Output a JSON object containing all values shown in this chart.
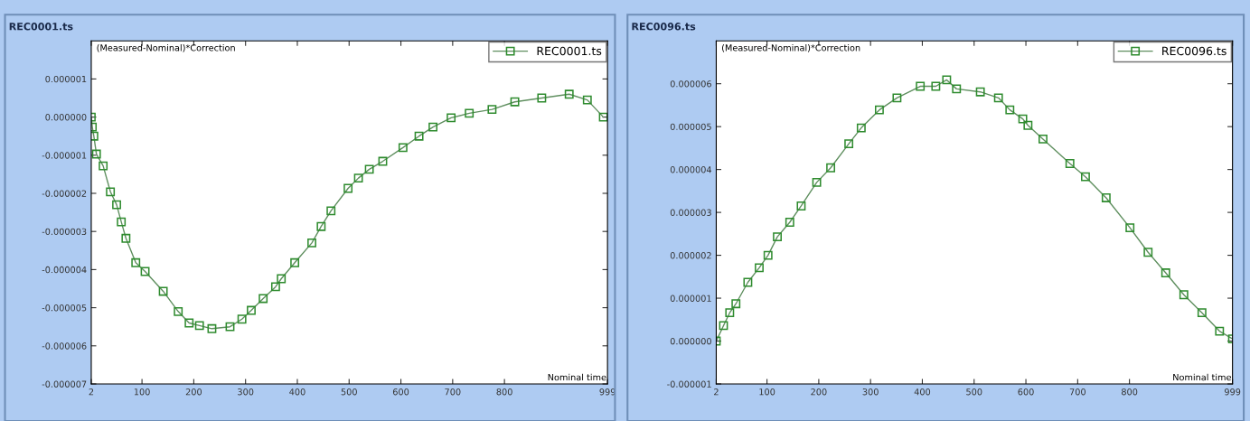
{
  "chart_data": [
    {
      "type": "line",
      "title": "REC0001.ts",
      "xlabel": "Nominal time",
      "ylabel": "(Measured-Nominal)*Correction",
      "x": [
        2,
        4,
        7,
        12,
        25,
        39,
        51,
        60,
        69,
        88,
        106,
        141,
        170,
        191,
        211,
        235,
        270,
        293,
        311,
        334,
        358,
        369,
        395,
        428,
        446,
        465,
        498,
        518,
        539,
        565,
        604,
        635,
        662,
        697,
        732,
        776,
        820,
        872,
        925,
        960,
        991
      ],
      "series": [
        {
          "name": "REC0001.ts",
          "color": "#2e8b2e",
          "values": [
            0.0,
            -2.6e-07,
            -5e-07,
            -9.7e-07,
            -1.28e-06,
            -1.96e-06,
            -2.3e-06,
            -2.75e-06,
            -3.18e-06,
            -3.82e-06,
            -4.05e-06,
            -4.57e-06,
            -5.1e-06,
            -5.4e-06,
            -5.47e-06,
            -5.55e-06,
            -5.5e-06,
            -5.3e-06,
            -5.07e-06,
            -4.76e-06,
            -4.45e-06,
            -4.24e-06,
            -3.82e-06,
            -3.3e-06,
            -2.87e-06,
            -2.46e-06,
            -1.87e-06,
            -1.6e-06,
            -1.37e-06,
            -1.16e-06,
            -8e-07,
            -5e-07,
            -2.6e-07,
            -2e-08,
            1e-07,
            2e-07,
            4e-07,
            5e-07,
            6e-07,
            4.5e-07,
            0.0
          ]
        }
      ],
      "xlim": [
        2,
        999
      ],
      "ylim": [
        -7e-06,
        2e-06
      ],
      "xticks": [
        2,
        100,
        200,
        300,
        400,
        500,
        600,
        700,
        800,
        999
      ],
      "yticks": [
        {
          "value": -7e-06,
          "label": "-0.000007"
        },
        {
          "value": -6e-06,
          "label": "-0.000006"
        },
        {
          "value": -5e-06,
          "label": "-0.000005"
        },
        {
          "value": -4e-06,
          "label": "-0.000004"
        },
        {
          "value": -3e-06,
          "label": "-0.000003"
        },
        {
          "value": -2e-06,
          "label": "-0.000002"
        },
        {
          "value": -1e-06,
          "label": "-0.000001"
        },
        {
          "value": 0,
          "label": "0.000000"
        },
        {
          "value": 1e-06,
          "label": "0.000001"
        }
      ],
      "marker": "square",
      "line_style": "solid",
      "grid": false,
      "legend": "top right"
    },
    {
      "type": "line",
      "title": "REC0096.ts",
      "xlabel": "Nominal time",
      "ylabel": "(Measured-Nominal)*Correction",
      "x": [
        2,
        16,
        28,
        40,
        63,
        85,
        102,
        120,
        144,
        166,
        196,
        223,
        258,
        282,
        317,
        351,
        396,
        426,
        447,
        466,
        512,
        547,
        569,
        594,
        604,
        633,
        685,
        715,
        755,
        801,
        836,
        870,
        905,
        940,
        974,
        999
      ],
      "series": [
        {
          "name": "REC0096.ts",
          "color": "#2e8b2e",
          "values": [
            0.0,
            3.6e-07,
            6.6e-07,
            8.7e-07,
            1.37e-06,
            1.71e-06,
            2e-06,
            2.43e-06,
            2.77e-06,
            3.15e-06,
            3.7e-06,
            4.04e-06,
            4.6e-06,
            4.97e-06,
            5.39e-06,
            5.67e-06,
            5.94e-06,
            5.94e-06,
            6.09e-06,
            5.88e-06,
            5.81e-06,
            5.67e-06,
            5.39e-06,
            5.18e-06,
            5.03e-06,
            4.71e-06,
            4.14e-06,
            3.83e-06,
            3.34e-06,
            2.64e-06,
            2.07e-06,
            1.59e-06,
            1.08e-06,
            6.6e-07,
            2.3e-07,
            5e-08
          ]
        }
      ],
      "xlim": [
        2,
        999
      ],
      "ylim": [
        -1e-06,
        7e-06
      ],
      "xticks": [
        2,
        100,
        200,
        300,
        400,
        500,
        600,
        700,
        800,
        999
      ],
      "yticks": [
        {
          "value": -1e-06,
          "label": "-0.000001"
        },
        {
          "value": 0,
          "label": "0.000000"
        },
        {
          "value": 1e-06,
          "label": "0.000001"
        },
        {
          "value": 2e-06,
          "label": "0.000002"
        },
        {
          "value": 3e-06,
          "label": "0.000003"
        },
        {
          "value": 4e-06,
          "label": "0.000004"
        },
        {
          "value": 5e-06,
          "label": "0.000005"
        },
        {
          "value": 6e-06,
          "label": "0.000006"
        }
      ],
      "marker": "square",
      "line_style": "solid",
      "grid": false,
      "legend": "top right"
    }
  ]
}
